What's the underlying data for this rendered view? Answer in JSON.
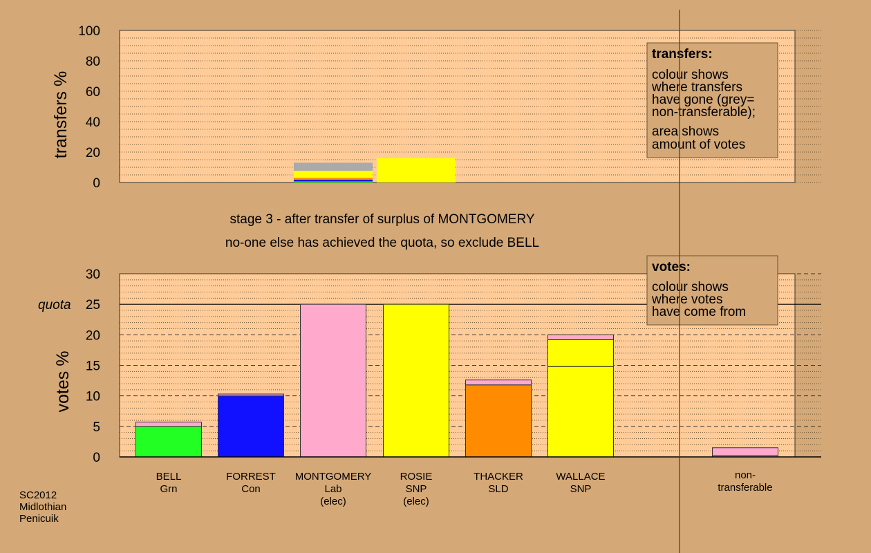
{
  "chart_data": [
    {
      "type": "bar",
      "stacked": true,
      "ylabel": "transfers %",
      "ylim": [
        0,
        100
      ],
      "yticks": [
        0,
        20,
        40,
        60,
        80,
        100
      ],
      "grid": "dotted",
      "categories": [
        "BELL",
        "FORREST",
        "MONTGOMERY",
        "ROSIE",
        "THACKER",
        "WALLACE",
        "non-transferable"
      ],
      "transfer_bars": [
        {
          "position": "MONTGOMERY",
          "segments": [
            {
              "colour": "#22ff22",
              "value": 0.7
            },
            {
              "colour": "#1111ff",
              "value": 1.1
            },
            {
              "colour": "#ff8c00",
              "value": 1.3
            },
            {
              "colour": "#ffff00",
              "value": 4.6
            },
            {
              "colour": "#aaaaaa",
              "value": 5.3
            }
          ]
        },
        {
          "position": "ROSIE",
          "segments": [
            {
              "colour": "#ffff00",
              "value": 16
            }
          ]
        }
      ],
      "legend_box": {
        "title": "transfers:",
        "lines1": [
          "colour shows",
          "where transfers",
          "have gone (grey=",
          "non-transferable);"
        ],
        "lines2": [
          "area shows",
          "amount of votes"
        ]
      }
    },
    {
      "type": "bar",
      "stacked": true,
      "ylabel": "votes %",
      "ylim": [
        0,
        30
      ],
      "yticks": [
        0,
        5,
        10,
        15,
        20,
        25,
        30
      ],
      "quota": {
        "label": "quota",
        "value": 25
      },
      "grid": "dashed/dotted",
      "categories": [
        "BELL",
        "FORREST",
        "MONTGOMERY",
        "ROSIE",
        "THACKER",
        "WALLACE",
        "non-transferable"
      ],
      "bars": [
        {
          "lines": [
            "BELL",
            "Grn"
          ],
          "segments": [
            {
              "colour": "#22ff22",
              "value": 5.0
            },
            {
              "colour": "#ffaacc",
              "value": 0.7
            }
          ]
        },
        {
          "lines": [
            "FORREST",
            "Con"
          ],
          "segments": [
            {
              "colour": "#1111ff",
              "value": 10.0
            },
            {
              "colour": "#ffaacc",
              "value": 0.3
            }
          ]
        },
        {
          "lines": [
            "MONTGOMERY",
            "Lab",
            "(elec)"
          ],
          "segments": [
            {
              "colour": "#ffaacc",
              "value": 25.0
            }
          ]
        },
        {
          "lines": [
            "ROSIE",
            "SNP",
            "(elec)"
          ],
          "segments": [
            {
              "colour": "#ffff00",
              "value": 25.0
            }
          ]
        },
        {
          "lines": [
            "THACKER",
            "SLD"
          ],
          "segments": [
            {
              "colour": "#ff8c00",
              "value": 11.8
            },
            {
              "colour": "#ffaacc",
              "value": 0.8
            }
          ]
        },
        {
          "lines": [
            "WALLACE",
            "SNP"
          ],
          "segments": [
            {
              "colour": "#ffff00",
              "value": 14.8
            },
            {
              "colour": "#ffff00",
              "value": 4.4
            },
            {
              "colour": "#ffaacc",
              "value": 0.8
            }
          ]
        },
        {
          "lines": [
            "non-",
            "transferable"
          ],
          "segments": [
            {
              "colour": "#aaaaaa",
              "value": 0.2
            },
            {
              "colour": "#ffaacc",
              "value": 1.3
            }
          ]
        }
      ],
      "legend_box": {
        "title": "votes:",
        "lines": [
          "colour shows",
          "where votes",
          "have come from"
        ]
      }
    }
  ],
  "caption": {
    "line1": "stage 3 - after transfer of surplus of MONTGOMERY",
    "line2": "no-one else has achieved the quota, so exclude BELL"
  },
  "footer": {
    "lines": [
      "SC2012",
      "Midlothian",
      "Penicuik"
    ]
  },
  "colors": {
    "page": "#d4a877",
    "plot": "#ffcc99"
  }
}
